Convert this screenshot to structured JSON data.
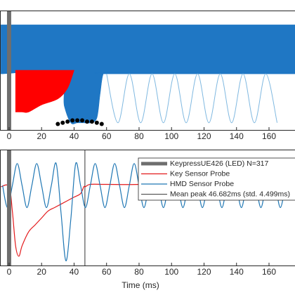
{
  "chart_data": [
    {
      "type": "band",
      "xlim": [
        -5.6,
        176
      ],
      "ylim": [
        0,
        1
      ],
      "xticks": [
        0,
        20,
        40,
        60,
        80,
        100,
        120,
        140,
        160
      ],
      "marker_x": 0,
      "marker_color": "#6e6e6e",
      "bands": [
        {
          "color": "#1f77c4",
          "x": [
            -5,
            30,
            34,
            38,
            42,
            46,
            50,
            54,
            56,
            58,
            62,
            176
          ],
          "upper": [
            0.88,
            0.88,
            0.88,
            0.88,
            0.88,
            0.88,
            0.88,
            0.88,
            0.88,
            0.88,
            0.88,
            0.88
          ],
          "lower": [
            0.47,
            0.47,
            0.2,
            0.06,
            0.06,
            0.06,
            0.06,
            0.1,
            0.3,
            0.47,
            0.47,
            0.47
          ]
        },
        {
          "color": "#ff0000",
          "x": [
            4,
            8,
            12,
            20,
            30,
            36,
            40
          ],
          "upper": [
            0.5,
            0.5,
            0.5,
            0.5,
            0.5,
            0.5,
            0.5
          ],
          "lower": [
            0.15,
            0.15,
            0.15,
            0.21,
            0.26,
            0.35,
            0.5
          ]
        }
      ],
      "lines": [
        {
          "color": "#7fb8e0",
          "x": [
            60,
            67,
            74,
            81,
            88,
            95,
            102,
            109,
            116,
            123,
            130,
            137,
            144,
            151,
            158,
            165
          ],
          "values": [
            0.47,
            0.06,
            0.47,
            0.06,
            0.47,
            0.06,
            0.47,
            0.06,
            0.47,
            0.06,
            0.47,
            0.06,
            0.47,
            0.06,
            0.47,
            0.06
          ]
        }
      ],
      "points": {
        "color": "#000000",
        "x": [
          30,
          33,
          36,
          39,
          42,
          45,
          48,
          51,
          54,
          57
        ],
        "values": [
          0.05,
          0.06,
          0.07,
          0.08,
          0.08,
          0.08,
          0.07,
          0.07,
          0.06,
          0.05
        ]
      }
    },
    {
      "type": "line",
      "xlim": [
        -5.6,
        176
      ],
      "ylim": [
        0,
        1
      ],
      "xticks": [
        0,
        20,
        40,
        60,
        80,
        100,
        120,
        140,
        160
      ],
      "xlabel": "Time (ms)",
      "marker_x": 0,
      "marker_color": "#6e6e6e",
      "mean_peak": 46.682,
      "legend_labels": [
        "KeypressUE426 (LED)  N=317",
        "Key Sensor Probe",
        "HMD Sensor Probe",
        "Mean peak 46.682ms (std. 4.499ms)"
      ],
      "series": [
        {
          "color": "#e31a1c",
          "x": [
            -5,
            0,
            2,
            4,
            6,
            8,
            12,
            16,
            20,
            24,
            28,
            32,
            36,
            40,
            44,
            46,
            47,
            50,
            60,
            80,
            100,
            120,
            140,
            176
          ],
          "values": [
            0.68,
            0.68,
            0.47,
            0.17,
            0.08,
            0.17,
            0.29,
            0.35,
            0.41,
            0.47,
            0.5,
            0.53,
            0.56,
            0.59,
            0.62,
            0.68,
            0.68,
            0.7,
            0.7,
            0.7,
            0.72,
            0.72,
            0.72,
            0.72
          ]
        },
        {
          "color": "#1f77b4",
          "x": [
            -4,
            -1,
            2,
            5,
            8,
            11,
            14,
            17,
            20,
            23,
            26,
            29,
            32,
            35,
            38,
            41,
            44,
            47,
            50,
            53,
            56,
            59,
            62,
            65,
            68,
            71,
            74,
            77,
            80,
            83,
            86,
            89,
            92,
            95,
            98,
            101,
            104,
            107,
            110,
            113,
            116,
            119,
            122,
            125,
            128,
            131,
            134,
            137,
            140,
            143,
            146,
            149,
            152,
            155,
            158,
            161,
            164,
            167,
            170
          ],
          "values": [
            0.69,
            0.5,
            0.69,
            0.88,
            0.69,
            0.5,
            0.69,
            0.88,
            0.69,
            0.5,
            0.69,
            0.88,
            0.45,
            0.04,
            0.4,
            0.88,
            0.69,
            0.5,
            0.69,
            0.88,
            0.69,
            0.5,
            0.69,
            0.88,
            0.69,
            0.5,
            0.69,
            0.88,
            0.69,
            0.5,
            0.69,
            0.88,
            0.69,
            0.5,
            0.69,
            0.88,
            0.69,
            0.5,
            0.69,
            0.88,
            0.69,
            0.5,
            0.69,
            0.88,
            0.69,
            0.5,
            0.69,
            0.88,
            0.69,
            0.5,
            0.69,
            0.88,
            0.69,
            0.5,
            0.69,
            0.88,
            0.69,
            0.5,
            0.69
          ]
        }
      ]
    }
  ]
}
